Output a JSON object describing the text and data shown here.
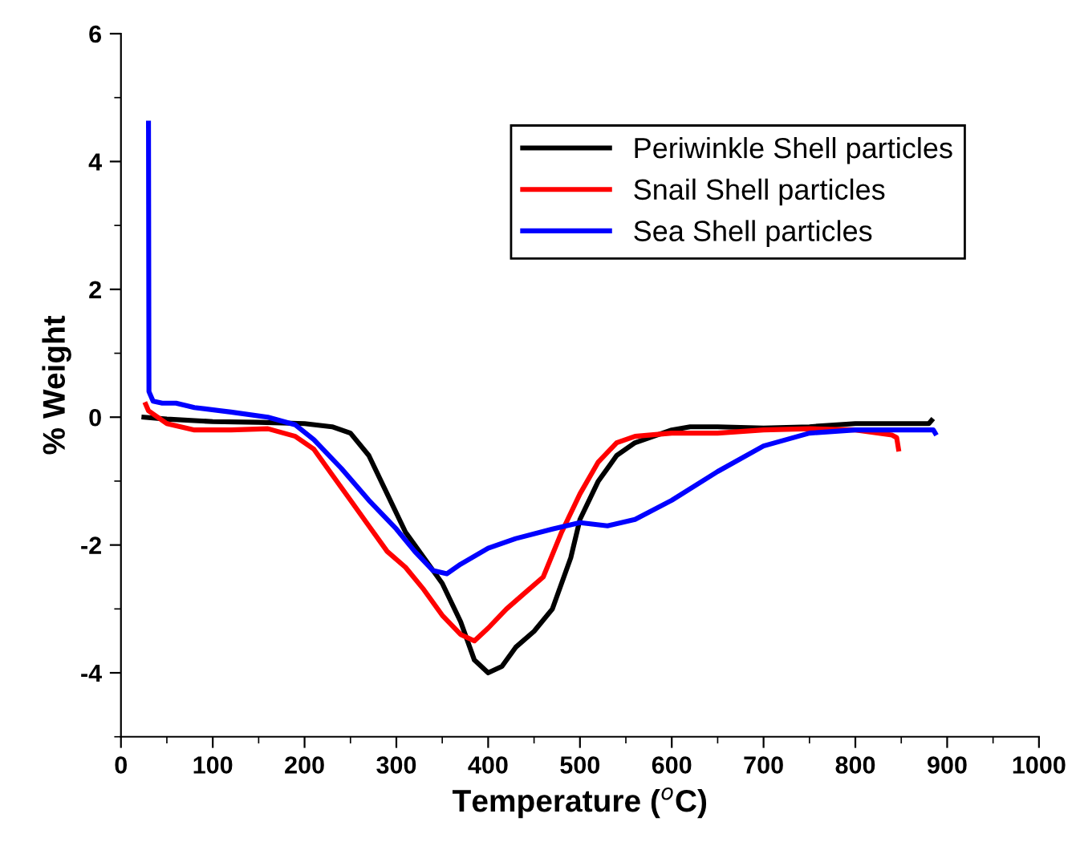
{
  "chart_data": {
    "type": "line",
    "xlabel": "Temperature ($^{o}$C)",
    "ylabel": "% Weight",
    "xlim": [
      0,
      1000
    ],
    "xticks": [
      0,
      100,
      200,
      300,
      400,
      500,
      600,
      700,
      800,
      900,
      1000
    ],
    "ylim": [
      -5,
      6
    ],
    "yticks": [
      -4,
      -2,
      0,
      2,
      4,
      6
    ],
    "grid": false,
    "legend": "top right",
    "marker": "none",
    "line_style": "solid",
    "series": [
      {
        "name": "Periwinkle Shell particles",
        "color": "#000000",
        "x": [
          25,
          50,
          100,
          150,
          200,
          230,
          250,
          270,
          290,
          310,
          330,
          350,
          370,
          385,
          400,
          415,
          430,
          450,
          470,
          490,
          500,
          520,
          540,
          560,
          580,
          600,
          620,
          650,
          700,
          750,
          800,
          850,
          880,
          883
        ],
        "values": [
          0,
          -0.03,
          -0.07,
          -0.08,
          -0.1,
          -0.15,
          -0.25,
          -0.6,
          -1.2,
          -1.8,
          -2.2,
          -2.6,
          -3.2,
          -3.8,
          -4.0,
          -3.9,
          -3.6,
          -3.35,
          -3.0,
          -2.2,
          -1.6,
          -1.0,
          -0.6,
          -0.4,
          -0.3,
          -0.2,
          -0.15,
          -0.15,
          -0.17,
          -0.15,
          -0.1,
          -0.1,
          -0.1,
          -0.05
        ]
      },
      {
        "name": "Snail Shell particles",
        "color": "#ff0000",
        "x": [
          27,
          30,
          50,
          80,
          120,
          160,
          190,
          210,
          230,
          250,
          270,
          290,
          310,
          330,
          350,
          370,
          385,
          400,
          420,
          440,
          460,
          480,
          500,
          520,
          540,
          560,
          600,
          650,
          700,
          750,
          800,
          840,
          845,
          847
        ],
        "values": [
          0.2,
          0.1,
          -0.1,
          -0.2,
          -0.2,
          -0.18,
          -0.3,
          -0.5,
          -0.9,
          -1.3,
          -1.7,
          -2.1,
          -2.35,
          -2.7,
          -3.1,
          -3.4,
          -3.5,
          -3.3,
          -3.0,
          -2.75,
          -2.5,
          -1.8,
          -1.2,
          -0.7,
          -0.4,
          -0.3,
          -0.25,
          -0.25,
          -0.2,
          -0.18,
          -0.2,
          -0.28,
          -0.32,
          -0.5
        ]
      },
      {
        "name": "Sea Shell particles",
        "color": "#0000ff",
        "x": [
          30,
          30.5,
          35,
          45,
          60,
          80,
          120,
          160,
          190,
          210,
          240,
          270,
          300,
          320,
          340,
          355,
          370,
          400,
          430,
          470,
          500,
          530,
          560,
          600,
          650,
          700,
          750,
          800,
          850,
          885,
          887
        ],
        "values": [
          4.6,
          0.4,
          0.25,
          0.22,
          0.22,
          0.15,
          0.08,
          0.0,
          -0.12,
          -0.35,
          -0.8,
          -1.3,
          -1.75,
          -2.1,
          -2.4,
          -2.45,
          -2.3,
          -2.05,
          -1.9,
          -1.75,
          -1.65,
          -1.7,
          -1.6,
          -1.3,
          -0.85,
          -0.45,
          -0.25,
          -0.2,
          -0.2,
          -0.2,
          -0.25
        ]
      }
    ]
  }
}
